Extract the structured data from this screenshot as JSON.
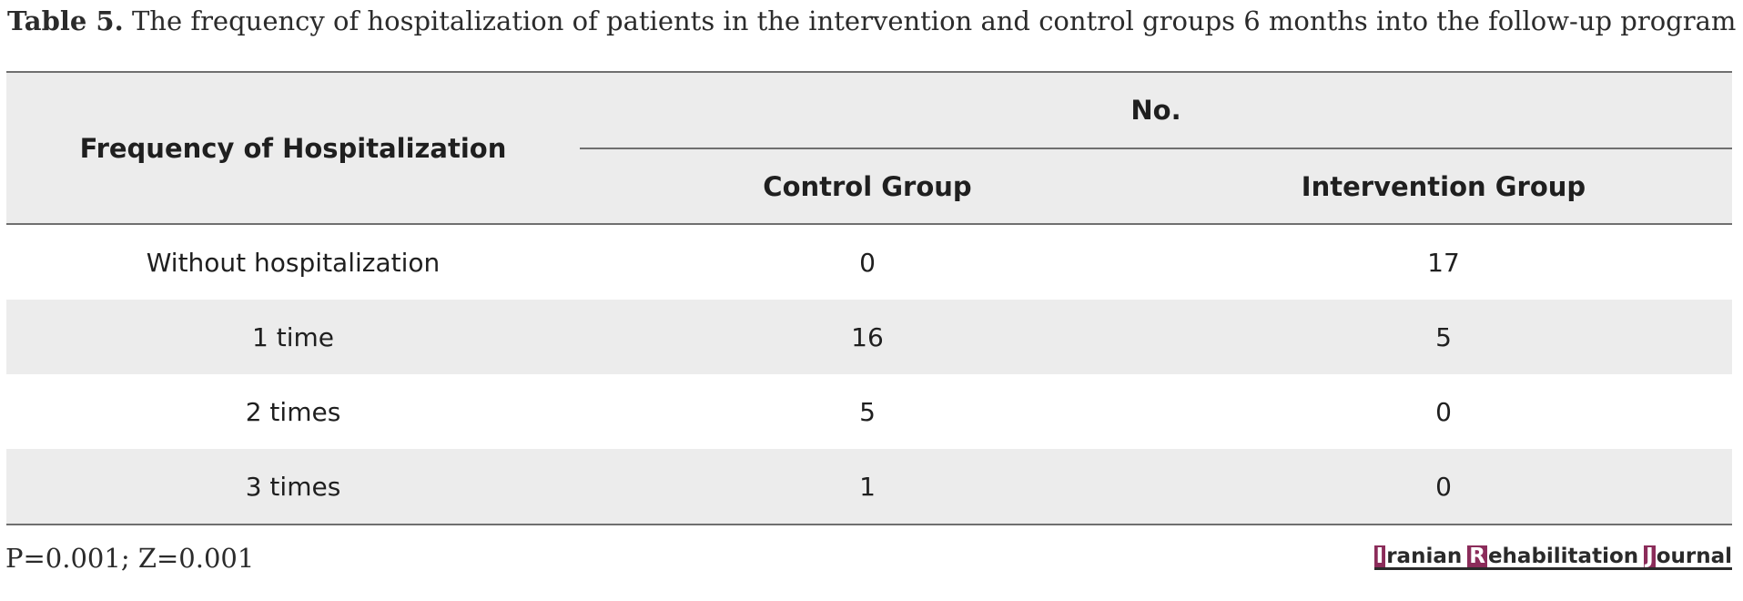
{
  "caption": {
    "label": "Table 5.",
    "text": "The frequency of hospitalization of patients in the intervention and control groups 6 months into the follow-up program"
  },
  "table": {
    "row_header": "Frequency of Hospitalization",
    "group_header": "No.",
    "columns": [
      "Control Group",
      "Intervention Group"
    ],
    "rows": [
      {
        "label": "Without hospitalization",
        "control": "0",
        "intervention": "17"
      },
      {
        "label": "1 time",
        "control": "16",
        "intervention": "5"
      },
      {
        "label": "2 times",
        "control": "5",
        "intervention": "0"
      },
      {
        "label": "3 times",
        "control": "1",
        "intervention": "0"
      }
    ]
  },
  "footnote": "P=0.001; Z=0.001",
  "logo": {
    "words": [
      {
        "initial": "I",
        "rest": "ranian"
      },
      {
        "initial": "R",
        "rest": "ehabilitation"
      },
      {
        "initial": "J",
        "rest": "ournal"
      }
    ]
  },
  "colors": {
    "header_bg": "#ececec",
    "rule": "#6f6f6f",
    "logo_accent": "#8b2c5a"
  }
}
